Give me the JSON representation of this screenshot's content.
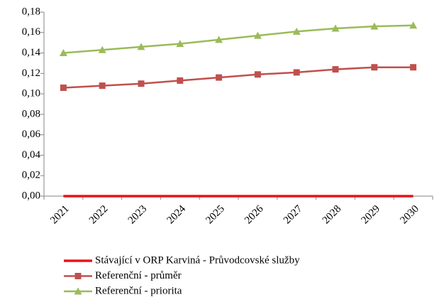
{
  "chart_data": {
    "type": "line",
    "categories": [
      "2021",
      "2022",
      "2023",
      "2024",
      "2025",
      "2026",
      "2027",
      "2028",
      "2029",
      "2030"
    ],
    "series": [
      {
        "name": "Stávající v ORP Karviná - Průvodcovské služby",
        "color": "#e8141b",
        "values": [
          0,
          0,
          0,
          0,
          0,
          0,
          0,
          0,
          0,
          0
        ]
      },
      {
        "name": "Referenční - průměr",
        "color": "#c0504d",
        "marker": "square",
        "values": [
          0.106,
          0.108,
          0.11,
          0.113,
          0.116,
          0.119,
          0.121,
          0.124,
          0.126,
          0.126
        ]
      },
      {
        "name": "Referenční - priorita",
        "color": "#9bbb59",
        "marker": "triangle",
        "values": [
          0.14,
          0.143,
          0.146,
          0.149,
          0.153,
          0.157,
          0.161,
          0.164,
          0.166,
          0.167
        ]
      }
    ],
    "ylim": [
      0,
      0.18
    ],
    "yticks": [
      {
        "value": 0,
        "label": "0,00"
      },
      {
        "value": 0.02,
        "label": "0,02"
      },
      {
        "value": 0.04,
        "label": "0,04"
      },
      {
        "value": 0.06,
        "label": "0,06"
      },
      {
        "value": 0.08,
        "label": "0,08"
      },
      {
        "value": 0.1,
        "label": "0,10"
      },
      {
        "value": 0.12,
        "label": "0,12"
      },
      {
        "value": 0.14,
        "label": "0,14"
      },
      {
        "value": 0.16,
        "label": "0,16"
      },
      {
        "value": 0.18,
        "label": "0,18"
      }
    ],
    "grid": false,
    "legend": "bottom"
  }
}
